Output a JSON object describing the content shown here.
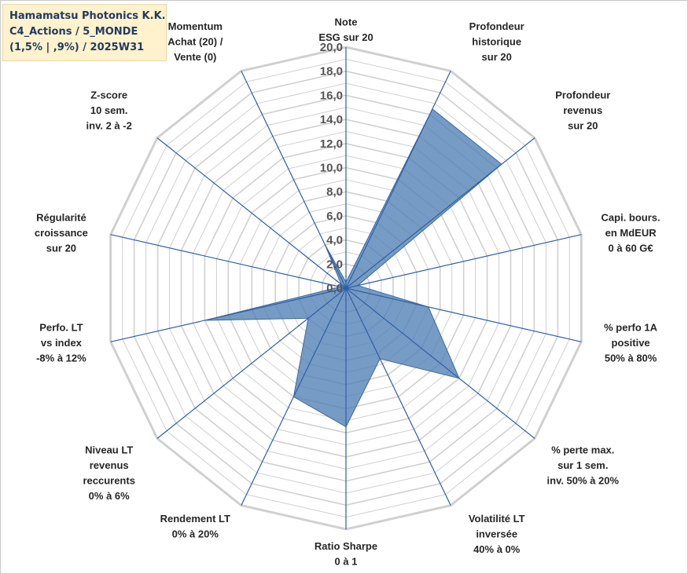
{
  "title": {
    "line1": "Hamamatsu Photonics K.K.",
    "line2": "C4_Actions / 5_MONDE",
    "line3": "(1,5% | ,9%) / 2025W31"
  },
  "chart_data": {
    "type": "radar",
    "rmin": 0,
    "rmax": 20,
    "tick_step": 2,
    "tick_labels": [
      "0,0",
      "2,0",
      "4,0",
      "6,0",
      "8,0",
      "10,0",
      "12,0",
      "14,0",
      "16,0",
      "18,0",
      "20,0"
    ],
    "axes": [
      {
        "label": [
          "Note",
          "ESG sur 20"
        ],
        "value": 0.5
      },
      {
        "label": [
          "Profondeur",
          "historique",
          "sur 20"
        ],
        "value": 16.5
      },
      {
        "label": [
          "Profondeur",
          "revenus",
          "sur 20"
        ],
        "value": 16.5
      },
      {
        "label": [
          "Capi. bours.",
          "en MdEUR",
          "0 à 60 G€"
        ],
        "value": 1.0
      },
      {
        "label": [
          "% perfo 1A",
          "positive",
          "50% à 80%"
        ],
        "value": 7.0
      },
      {
        "label": [
          "% perte max.",
          "sur 1 sem.",
          "inv. 50% à 20%"
        ],
        "value": 12.0
      },
      {
        "label": [
          "Volatilité LT",
          "inversée",
          "40% à 0%"
        ],
        "value": 6.5
      },
      {
        "label": [
          "Ratio Sharpe",
          "0 à 1"
        ],
        "value": 11.5
      },
      {
        "label": [
          "Rendement LT",
          "0% à 20%"
        ],
        "value": 10.0
      },
      {
        "label": [
          "Niveau LT",
          "revenus",
          "reccurents",
          "0% à 6%"
        ],
        "value": 4.0
      },
      {
        "label": [
          "Perfo. LT",
          "vs index",
          "-8% à 12%"
        ],
        "value": 12.0
      },
      {
        "label": [
          "Régularité",
          "croissance",
          "sur 20"
        ],
        "value": 0.5
      },
      {
        "label": [
          "Z-score",
          "10 sem.",
          "inv. 2 à -2"
        ],
        "value": 0.5
      },
      {
        "label": [
          "Momentum",
          "Achat (20) /",
          "Vente (0)"
        ],
        "value": 4.0
      }
    ],
    "grid": true,
    "fill_color": "#4f7fb3",
    "spoke_color": "#2e5fa8",
    "grid_color": "#d0d0d0"
  }
}
